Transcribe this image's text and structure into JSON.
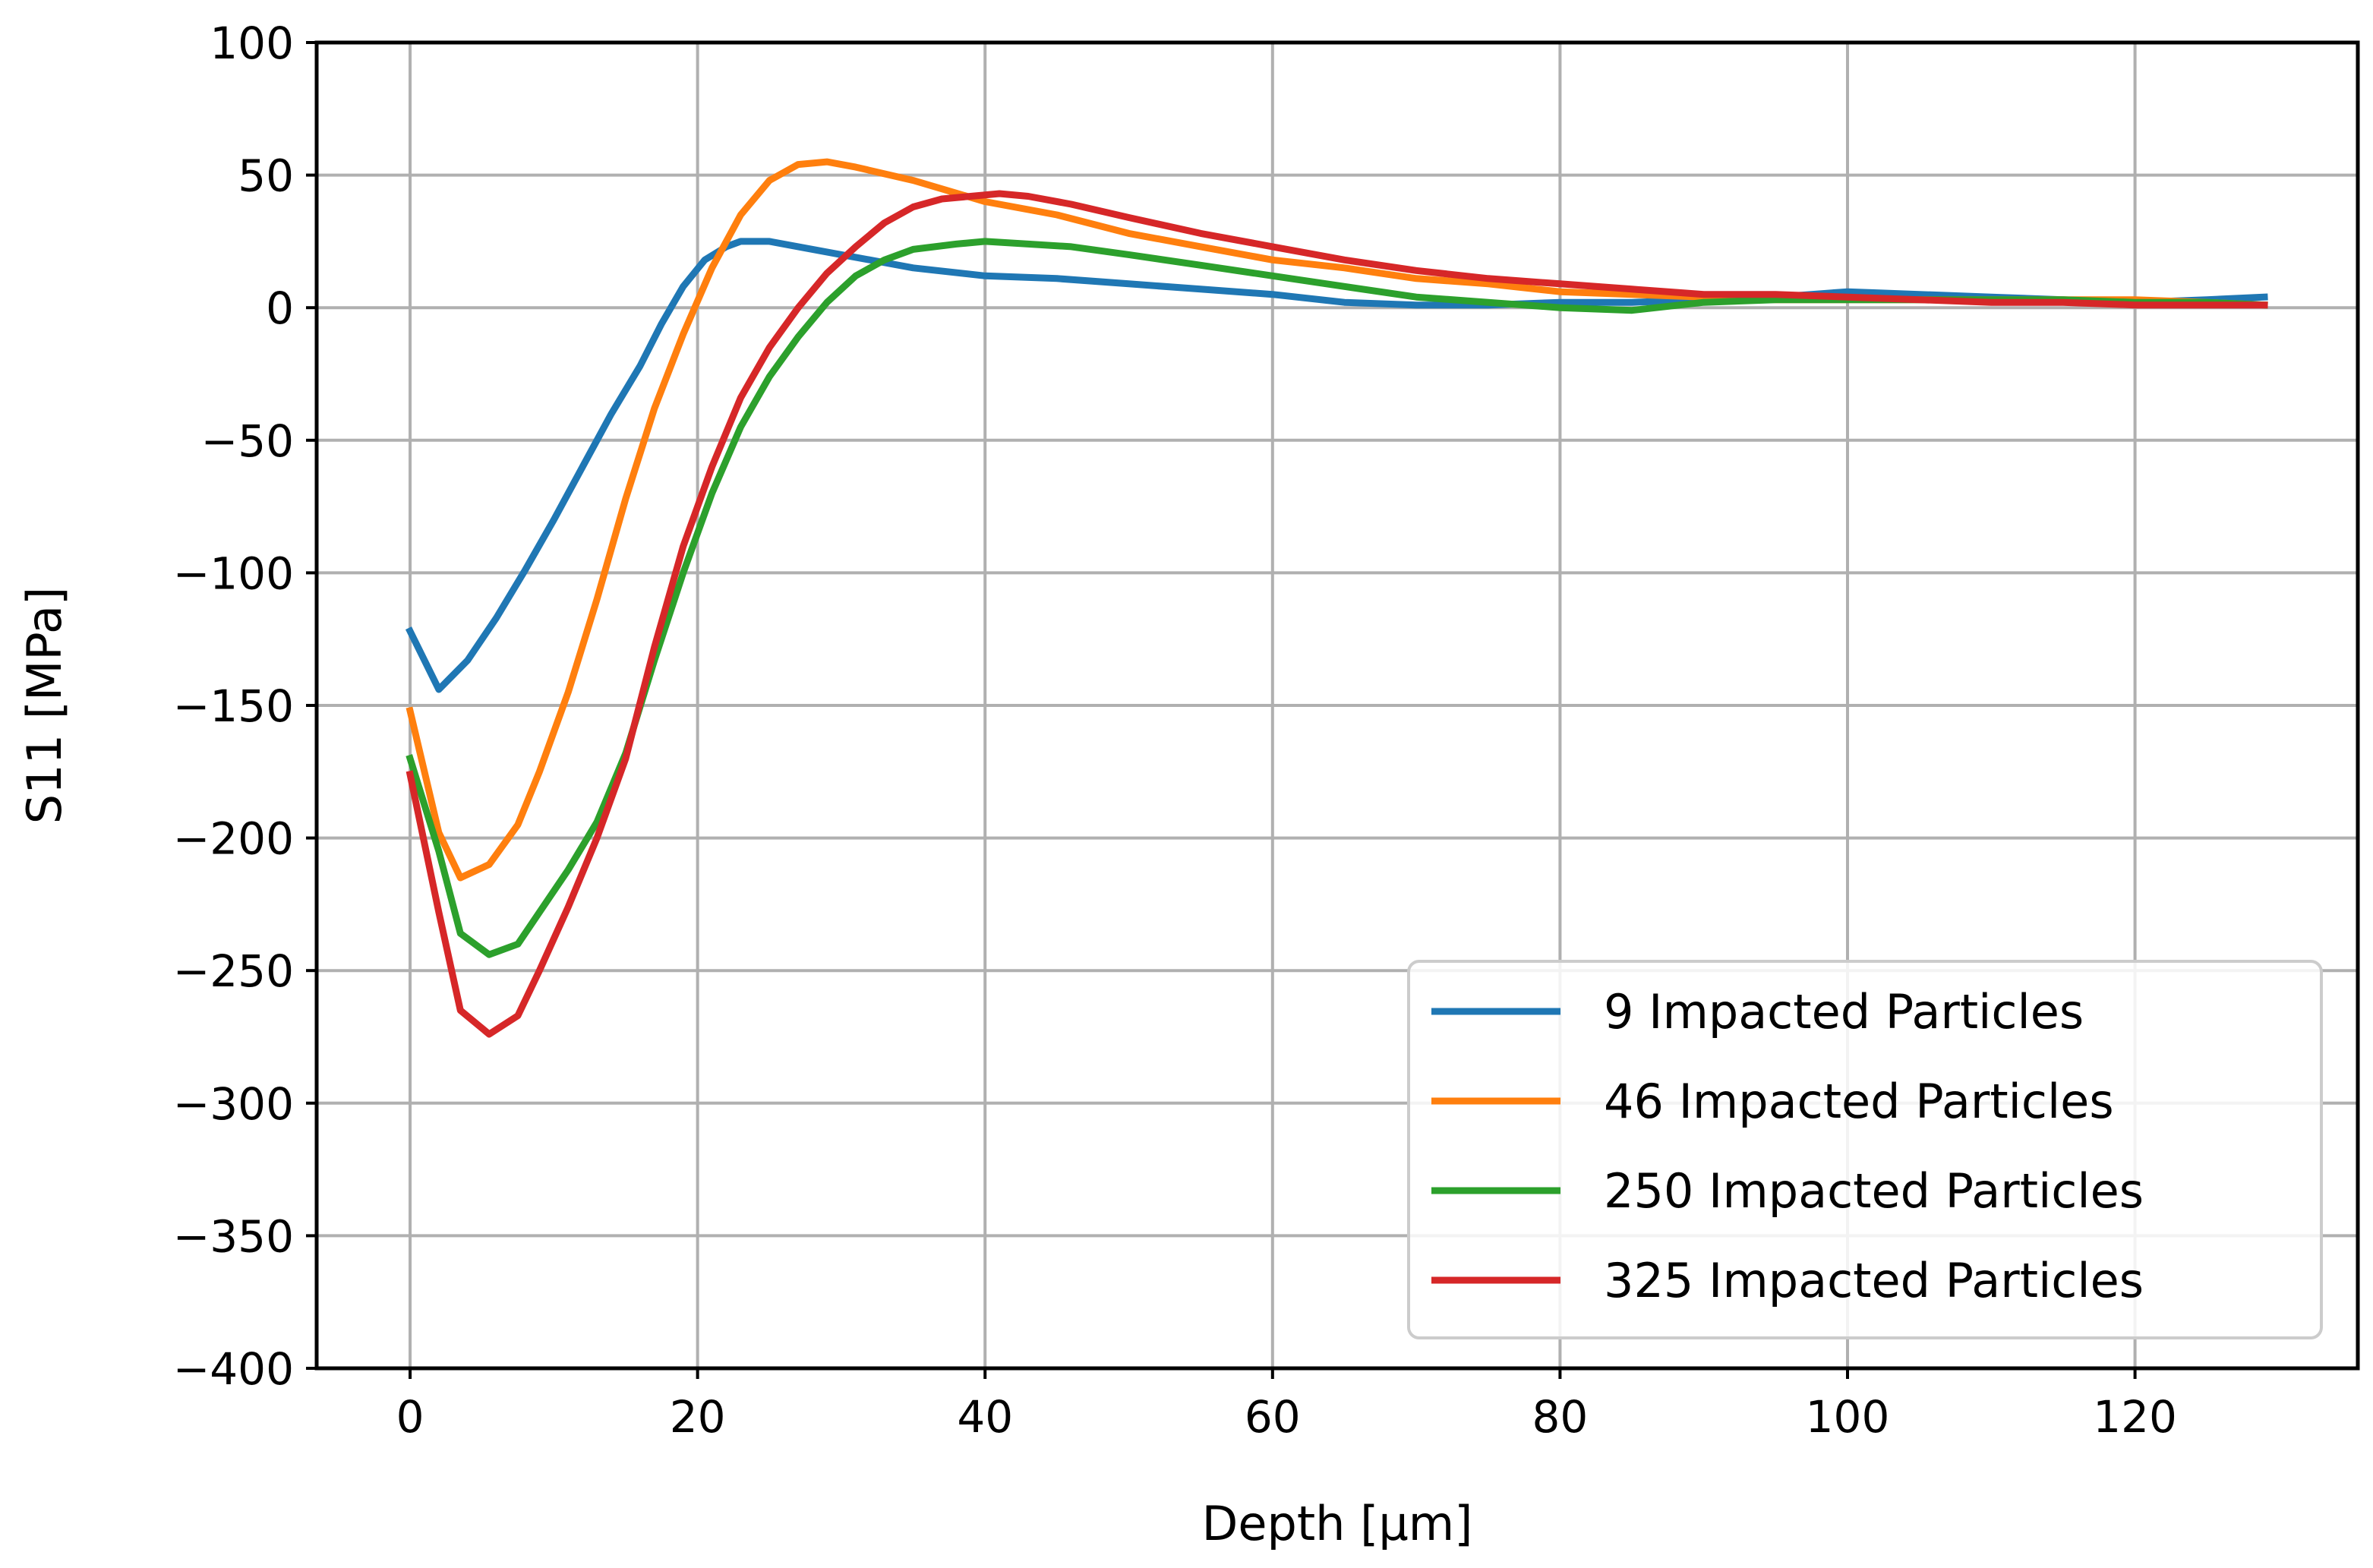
{
  "chart_data": {
    "type": "line",
    "title": "",
    "xlabel": "Depth [µm]",
    "ylabel": "S11 [MPa]",
    "xlim": [
      -6.5,
      135.5
    ],
    "ylim": [
      -400,
      100
    ],
    "xticks": [
      0,
      20,
      40,
      60,
      80,
      100,
      120
    ],
    "yticks": [
      100,
      50,
      0,
      -50,
      -100,
      -150,
      -200,
      -250,
      -300,
      -350,
      -400
    ],
    "xtick_labels": [
      "0",
      "20",
      "40",
      "60",
      "80",
      "100",
      "120"
    ],
    "ytick_labels": [
      "100",
      "50",
      "0",
      "−50",
      "−100",
      "−150",
      "−200",
      "−250",
      "−300",
      "−350",
      "−400"
    ],
    "grid": true,
    "legend_position": "lower-right",
    "series": [
      {
        "name": "9 Impacted Particles",
        "color": "#1f77b4",
        "x": [
          0,
          2,
          4,
          6,
          8,
          10,
          12,
          14,
          16,
          17.5,
          19,
          20.5,
          22,
          23,
          25,
          27,
          30,
          35,
          40,
          45,
          50,
          55,
          60,
          65,
          70,
          75,
          80,
          85,
          90,
          95,
          100,
          105,
          110,
          115,
          120,
          125,
          129
        ],
        "y": [
          -122,
          -144,
          -133,
          -117,
          -99,
          -80,
          -60,
          -40,
          -22,
          -6,
          8,
          18,
          23,
          25,
          25,
          23,
          20,
          15,
          12,
          11,
          9,
          7,
          5,
          2,
          1,
          1,
          2,
          2,
          3,
          4,
          6,
          5,
          4,
          3,
          2,
          3,
          4
        ]
      },
      {
        "name": "46 Impacted Particles",
        "color": "#ff7f0e",
        "x": [
          0,
          2,
          3.5,
          5.5,
          7.5,
          9,
          11,
          13,
          15,
          17,
          19,
          21,
          23,
          25,
          27,
          29,
          31,
          35,
          40,
          45,
          50,
          55,
          60,
          65,
          70,
          75,
          80,
          85,
          90,
          95,
          100,
          105,
          110,
          115,
          120,
          125,
          129
        ],
        "y": [
          -152,
          -198,
          -215,
          -210,
          -195,
          -175,
          -145,
          -110,
          -72,
          -38,
          -10,
          15,
          35,
          48,
          54,
          55,
          53,
          48,
          40,
          35,
          28,
          23,
          18,
          15,
          11,
          9,
          6,
          5,
          4,
          3,
          3,
          3,
          3,
          3,
          3,
          2,
          1
        ]
      },
      {
        "name": "250 Impacted Particles",
        "color": "#2ca02c",
        "x": [
          0,
          2,
          3.5,
          5.5,
          7.5,
          9,
          11,
          13,
          15,
          17,
          19,
          21,
          23,
          25,
          27,
          29,
          31,
          33,
          35,
          38,
          40,
          43,
          46,
          50,
          55,
          60,
          65,
          70,
          75,
          80,
          85,
          90,
          95,
          100,
          105,
          110,
          115,
          120,
          125,
          129
        ],
        "y": [
          -170,
          -205,
          -236,
          -244,
          -240,
          -228,
          -212,
          -194,
          -168,
          -133,
          -100,
          -70,
          -45,
          -26,
          -11,
          2,
          12,
          18,
          22,
          24,
          25,
          24,
          23,
          20,
          16,
          12,
          8,
          4,
          2,
          0,
          -1,
          2,
          3,
          3,
          3,
          3,
          3,
          2,
          2,
          1
        ]
      },
      {
        "name": "325 Impacted Particles",
        "color": "#d62728",
        "x": [
          0,
          2,
          3.5,
          5.5,
          7.5,
          9,
          11,
          13,
          15,
          17,
          19,
          21,
          23,
          25,
          27,
          29,
          31,
          33,
          35,
          37,
          39,
          41,
          43,
          46,
          50,
          55,
          60,
          65,
          70,
          75,
          80,
          85,
          90,
          95,
          100,
          105,
          110,
          115,
          120,
          125,
          129
        ],
        "y": [
          -176,
          -228,
          -265,
          -274,
          -267,
          -250,
          -226,
          -200,
          -170,
          -128,
          -90,
          -60,
          -34,
          -15,
          0,
          13,
          23,
          32,
          38,
          41,
          42,
          43,
          42,
          39,
          34,
          28,
          23,
          18,
          14,
          11,
          9,
          7,
          5,
          5,
          4,
          3,
          2,
          2,
          1,
          1,
          1
        ]
      }
    ]
  }
}
